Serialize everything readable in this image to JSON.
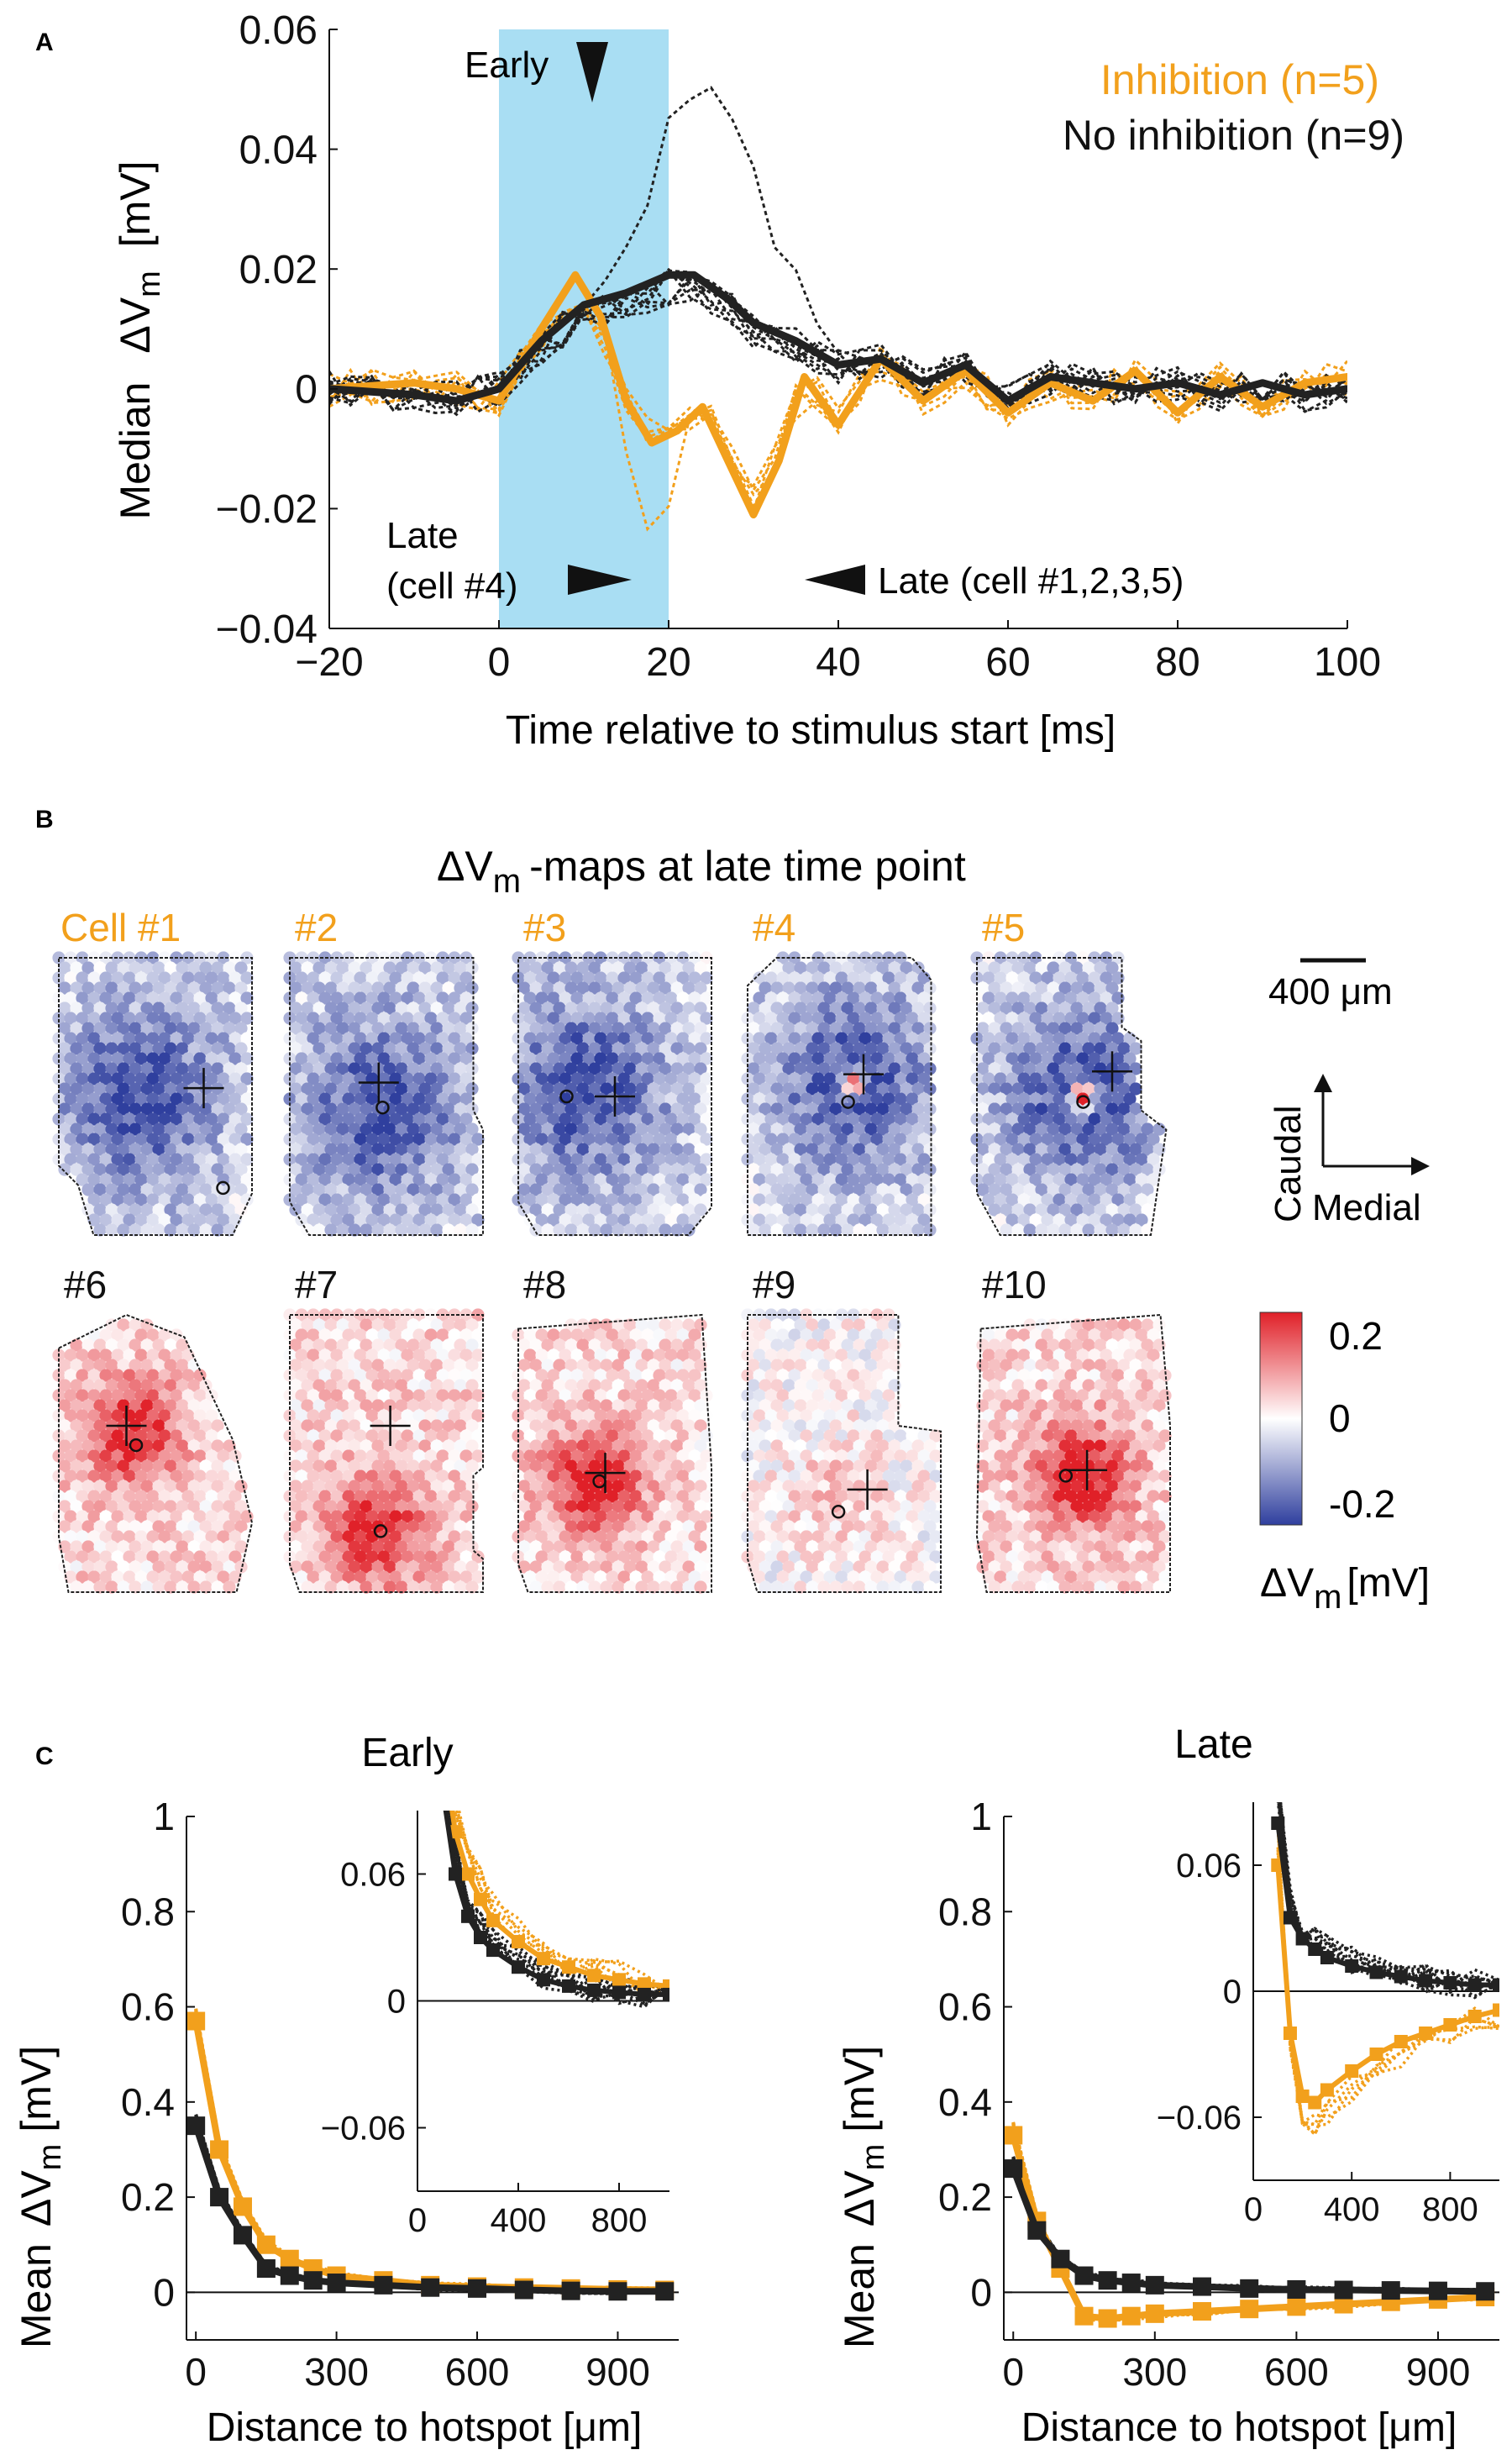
{
  "colors": {
    "orange": "#f2a01c",
    "black": "#222222",
    "stim": "#a9def3",
    "red": "#e02028",
    "blue": "#2f3f9e"
  },
  "panel_a": {
    "letter": "A",
    "ylabel_1": "Median",
    "ylabel_2": "ΔV",
    "ylabel_sub": "m",
    "ylabel_unit": "[mV]",
    "early_label": "Early",
    "late4_line1": "Late",
    "late4_line2": "(cell #4)",
    "late_rest": "Late (cell #1,2,3,5)"
  },
  "panel_b": {
    "letter": "B",
    "title_1": "ΔV",
    "title_sub": "m",
    "title_2": "-maps at late time point",
    "scale_bar": "400 μm",
    "axis_caudal": "Caudal",
    "axis_medial": "Medial",
    "colorbar_ticks": [
      "0.2",
      "0",
      "-0.2"
    ],
    "colorbar_label_1": "ΔV",
    "colorbar_sub": "m",
    "colorbar_label_2": "[mV]",
    "cells": [
      {
        "label": "Cell #1",
        "inhibition": true
      },
      {
        "label": "#2",
        "inhibition": true
      },
      {
        "label": "#3",
        "inhibition": true
      },
      {
        "label": "#4",
        "inhibition": true
      },
      {
        "label": "#5",
        "inhibition": true
      },
      {
        "label": "#6",
        "inhibition": false
      },
      {
        "label": "#7",
        "inhibition": false
      },
      {
        "label": "#8",
        "inhibition": false
      },
      {
        "label": "#9",
        "inhibition": false
      },
      {
        "label": "#10",
        "inhibition": false
      }
    ]
  },
  "panel_c": {
    "letter": "C",
    "ylabel_1": "Mean",
    "ylabel_2": "ΔV",
    "ylabel_sub": "m",
    "ylabel_unit": "[mV]"
  },
  "chart_data": [
    {
      "type": "line",
      "id": "A",
      "title": "",
      "xlabel": "Time relative to stimulus start [ms]",
      "ylabel": "Median ΔVm [mV]",
      "xlim": [
        -20,
        100
      ],
      "ylim": [
        -0.04,
        0.06
      ],
      "xticks": [
        -20,
        0,
        20,
        40,
        60,
        80,
        100
      ],
      "xtick_labels": [
        "−20",
        "0",
        "20",
        "40",
        "60",
        "80",
        "100"
      ],
      "yticks": [
        -0.04,
        -0.02,
        0,
        0.02,
        0.04,
        0.06
      ],
      "ytick_labels": [
        "−0.04",
        "−0.02",
        "0",
        "0.02",
        "0.04",
        "0.06"
      ],
      "stimulus_window": [
        0,
        20
      ],
      "legend": [
        "Inhibition (n=5)",
        "No inhibition (n=9)"
      ],
      "series": [
        {
          "name": "Inhibition (n=5)",
          "color": "#f2a01c",
          "x": [
            -20,
            -10,
            -5,
            0,
            5,
            9,
            12,
            15,
            18,
            21,
            24,
            27,
            30,
            33,
            36,
            40,
            45,
            50,
            55,
            60,
            65,
            70,
            75,
            80,
            85,
            90,
            95,
            100
          ],
          "values": [
            0,
            0.001,
            0,
            -0.002,
            0.01,
            0.019,
            0.012,
            -0.002,
            -0.009,
            -0.007,
            -0.003,
            -0.012,
            -0.021,
            -0.012,
            0.002,
            -0.006,
            0.005,
            -0.002,
            0.003,
            -0.004,
            0.001,
            -0.002,
            0.003,
            -0.004,
            0.002,
            -0.003,
            0.001,
            0.002
          ]
        },
        {
          "name": "No inhibition (n=9)",
          "color": "#222222",
          "x": [
            -20,
            -10,
            -5,
            0,
            5,
            10,
            15,
            20,
            23,
            27,
            30,
            35,
            40,
            45,
            50,
            55,
            60,
            65,
            70,
            75,
            80,
            85,
            90,
            95,
            100
          ],
          "values": [
            0,
            -0.001,
            -0.002,
            0,
            0.008,
            0.014,
            0.016,
            0.019,
            0.019,
            0.015,
            0.011,
            0.008,
            0.004,
            0.005,
            0.001,
            0.004,
            -0.002,
            0.002,
            0.001,
            0,
            0.001,
            -0.001,
            0.001,
            -0.001,
            0
          ]
        }
      ]
    },
    {
      "type": "line",
      "id": "C-early",
      "title": "Early",
      "xlabel": "Distance to hotspot [μm]",
      "ylabel": "Mean ΔVm [mV]",
      "xlim": [
        -20,
        1030
      ],
      "ylim": [
        -0.1,
        1.0
      ],
      "xticks": [
        0,
        300,
        600,
        900
      ],
      "xtick_labels": [
        "0",
        "300",
        "600",
        "900"
      ],
      "yticks": [
        0,
        0.2,
        0.4,
        0.6,
        0.8,
        1
      ],
      "ytick_labels": [
        "0",
        "0.2",
        "0.4",
        "0.6",
        "0.8",
        "1"
      ],
      "x": [
        0,
        50,
        100,
        150,
        200,
        250,
        300,
        400,
        500,
        600,
        700,
        800,
        900,
        1000
      ],
      "series": [
        {
          "name": "Inhibition",
          "color": "#f2a01c",
          "values": [
            0.57,
            0.3,
            0.18,
            0.1,
            0.07,
            0.05,
            0.035,
            0.025,
            0.015,
            0.012,
            0.01,
            0.008,
            0.006,
            0.005
          ]
        },
        {
          "name": "No inhibition",
          "color": "#222222",
          "values": [
            0.35,
            0.2,
            0.12,
            0.05,
            0.035,
            0.025,
            0.02,
            0.015,
            0.01,
            0.008,
            0.005,
            0.003,
            0.002,
            0.002
          ]
        }
      ],
      "inset": {
        "xlim": [
          0,
          1000
        ],
        "ylim": [
          -0.09,
          0.09
        ],
        "xticks": [
          0,
          400,
          800
        ],
        "xtick_labels": [
          "0",
          "400",
          "800"
        ],
        "yticks": [
          -0.06,
          0,
          0.06
        ],
        "ytick_labels": [
          "−0.06",
          "0",
          "0.06"
        ],
        "x": [
          100,
          150,
          200,
          250,
          300,
          400,
          500,
          600,
          700,
          800,
          900,
          1000
        ],
        "series": [
          {
            "name": "Inhibition",
            "values": [
              0.12,
              0.08,
              0.06,
              0.048,
              0.038,
              0.028,
              0.02,
              0.016,
              0.012,
              0.01,
              0.008,
              0.007
            ]
          },
          {
            "name": "No inhibition",
            "values": [
              0.1,
              0.06,
              0.04,
              0.03,
              0.024,
              0.016,
              0.01,
              0.007,
              0.005,
              0.004,
              0.003,
              0.003
            ]
          }
        ]
      }
    },
    {
      "type": "line",
      "id": "C-late",
      "title": "Late",
      "xlabel": "Distance to hotspot [μm]",
      "ylabel": "Mean ΔVm [mV]",
      "xlim": [
        -20,
        1030
      ],
      "ylim": [
        -0.1,
        1.0
      ],
      "xticks": [
        0,
        300,
        600,
        900
      ],
      "xtick_labels": [
        "0",
        "300",
        "600",
        "900"
      ],
      "yticks": [
        0,
        0.2,
        0.4,
        0.6,
        0.8,
        1
      ],
      "ytick_labels": [
        "0",
        "0.2",
        "0.4",
        "0.6",
        "0.8",
        "1"
      ],
      "x": [
        0,
        50,
        100,
        150,
        200,
        250,
        300,
        400,
        500,
        600,
        700,
        800,
        900,
        1000
      ],
      "series": [
        {
          "name": "Inhibition",
          "color": "#f2a01c",
          "values": [
            0.33,
            0.15,
            0.05,
            -0.05,
            -0.055,
            -0.05,
            -0.045,
            -0.04,
            -0.035,
            -0.03,
            -0.025,
            -0.02,
            -0.015,
            -0.01
          ]
        },
        {
          "name": "No inhibition",
          "color": "#222222",
          "values": [
            0.26,
            0.13,
            0.07,
            0.035,
            0.025,
            0.02,
            0.015,
            0.012,
            0.008,
            0.006,
            0.005,
            0.004,
            0.003,
            0.002
          ]
        }
      ],
      "inset": {
        "xlim": [
          0,
          1000
        ],
        "ylim": [
          -0.09,
          0.09
        ],
        "xticks": [
          0,
          400,
          800
        ],
        "xtick_labels": [
          "0",
          "400",
          "800"
        ],
        "yticks": [
          -0.06,
          0,
          0.06
        ],
        "ytick_labels": [
          "−0.06",
          "0",
          "0.06"
        ],
        "x": [
          100,
          150,
          200,
          250,
          300,
          400,
          500,
          600,
          700,
          800,
          900,
          1000
        ],
        "series": [
          {
            "name": "Inhibition",
            "values": [
              0.06,
              -0.02,
              -0.05,
              -0.053,
              -0.047,
              -0.038,
              -0.03,
              -0.024,
              -0.02,
              -0.016,
              -0.012,
              -0.009
            ]
          },
          {
            "name": "No inhibition",
            "values": [
              0.08,
              0.035,
              0.025,
              0.02,
              0.016,
              0.012,
              0.009,
              0.007,
              0.005,
              0.004,
              0.003,
              0.003
            ]
          }
        ]
      }
    }
  ]
}
